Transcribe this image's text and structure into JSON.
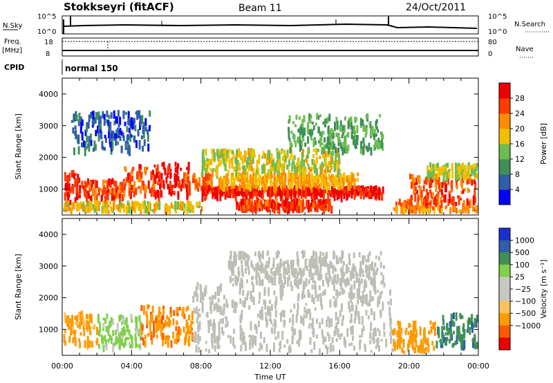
{
  "header": {
    "station": "Stokkseyri (fitACF)",
    "beam": "Beam 11",
    "date": "24/Oct/2011"
  },
  "status_strip": {
    "nsky_label": "N.Sky",
    "nsky_ticks": [
      "10^5",
      "10^0"
    ],
    "nsearch_label": "N.Search",
    "nsearch_ticks": [
      "10^5",
      "10^0"
    ],
    "freq_label": "Freq.",
    "freq_unit": "[MHz]",
    "freq_ticks": [
      "18",
      "8"
    ],
    "nave_label": "Nave",
    "nave_ticks": [
      "80",
      "0"
    ],
    "cpid_label": "CPID",
    "cpid_value": "normal 150"
  },
  "colors": {
    "power_scale": [
      "#0000ff",
      "#2f5fa8",
      "#3f8f57",
      "#6cbd4f",
      "#f0c000",
      "#ff8c00",
      "#ff3c00",
      "#ee0000"
    ],
    "velocity_scale": [
      "#ee0000",
      "#ff5a00",
      "#ff9a00",
      "#ffc25a",
      "#c8c8c0",
      "#c8c8c0",
      "#7fd04a",
      "#3f8f57",
      "#2f5fa8",
      "#1a2fd0"
    ],
    "ground_scatter": "#bebeb6"
  },
  "chart_data": [
    {
      "id": "power",
      "type": "heatmap",
      "xlabel": "",
      "ylabel": "Slant Range [km]",
      "ylim": [
        180,
        4500
      ],
      "yticks": [
        "1000",
        "2000",
        "3000",
        "4000"
      ],
      "colorbar_label": "Power [dB]",
      "colorbar_ticks": [
        "4",
        "8",
        "12",
        "16",
        "20",
        "24",
        "28"
      ],
      "colorbar_range": [
        0,
        32
      ],
      "regions": [
        {
          "t": [
            0.0,
            1.2
          ],
          "r": [
            650,
            1650
          ],
          "v": 28
        },
        {
          "t": [
            1.2,
            3.5
          ],
          "r": [
            780,
            1350
          ],
          "v": 26
        },
        {
          "t": [
            3.5,
            5.3
          ],
          "r": [
            900,
            1800
          ],
          "v": 25
        },
        {
          "t": [
            5.3,
            7.3
          ],
          "r": [
            850,
            1900
          ],
          "v": 30
        },
        {
          "t": [
            7.0,
            8.6
          ],
          "r": [
            1050,
            1550
          ],
          "v": 24
        },
        {
          "t": [
            8.0,
            18.5
          ],
          "r": [
            880,
            1130
          ],
          "v": 29
        },
        {
          "t": [
            10.0,
            15.5
          ],
          "r": [
            420,
            720
          ],
          "v": 27
        },
        {
          "t": [
            9.0,
            17.0
          ],
          "r": [
            1150,
            1550
          ],
          "v": 20
        },
        {
          "t": [
            8.0,
            16.0
          ],
          "r": [
            1600,
            2300
          ],
          "v": 17
        },
        {
          "t": [
            13.0,
            18.5
          ],
          "r": [
            2300,
            3400
          ],
          "v": 12
        },
        {
          "t": [
            0.5,
            5.0
          ],
          "r": [
            2300,
            3500
          ],
          "v": 6
        },
        {
          "t": [
            19.2,
            20.0
          ],
          "r": [
            300,
            700
          ],
          "v": 24
        },
        {
          "t": [
            20.0,
            23.8
          ],
          "r": [
            550,
            1500
          ],
          "v": 26
        },
        {
          "t": [
            21.0,
            24.0
          ],
          "r": [
            1500,
            1850
          ],
          "v": 16
        },
        {
          "t": [
            0.0,
            8.0
          ],
          "r": [
            250,
            650
          ],
          "v": 18
        },
        {
          "t": [
            19.0,
            24.0
          ],
          "r": [
            220,
            500
          ],
          "v": 22
        }
      ]
    },
    {
      "id": "velocity",
      "type": "heatmap",
      "xlabel": "Time UT",
      "ylabel": "Slant Range [km]",
      "ylim": [
        180,
        4500
      ],
      "yticks": [
        "1000",
        "2000",
        "3000",
        "4000"
      ],
      "xticks": [
        "00:00",
        "04:00",
        "08:00",
        "12:00",
        "16:00",
        "20:00",
        "00:00"
      ],
      "xlim_hours": [
        0,
        24
      ],
      "colorbar_label": "Velocity [m s⁻¹]",
      "colorbar_ticks": [
        "1000",
        "500",
        "100",
        "25",
        "−25",
        "−100",
        "−500",
        "−1000"
      ],
      "regions": [
        {
          "t": [
            0.0,
            2.0
          ],
          "r": [
            600,
            1600
          ],
          "v": -150
        },
        {
          "t": [
            2.0,
            4.5
          ],
          "r": [
            500,
            1500
          ],
          "v": 50
        },
        {
          "t": [
            4.5,
            7.5
          ],
          "r": [
            650,
            1800
          ],
          "v": -400
        },
        {
          "t": [
            7.5,
            19.0
          ],
          "r": [
            350,
            2500
          ],
          "v": "ground"
        },
        {
          "t": [
            9.5,
            18.5
          ],
          "r": [
            2500,
            3500
          ],
          "v": "ground"
        },
        {
          "t": [
            19.0,
            21.5
          ],
          "r": [
            300,
            1300
          ],
          "v": -300
        },
        {
          "t": [
            21.5,
            24.0
          ],
          "r": [
            550,
            1550
          ],
          "v": 400
        }
      ]
    }
  ]
}
